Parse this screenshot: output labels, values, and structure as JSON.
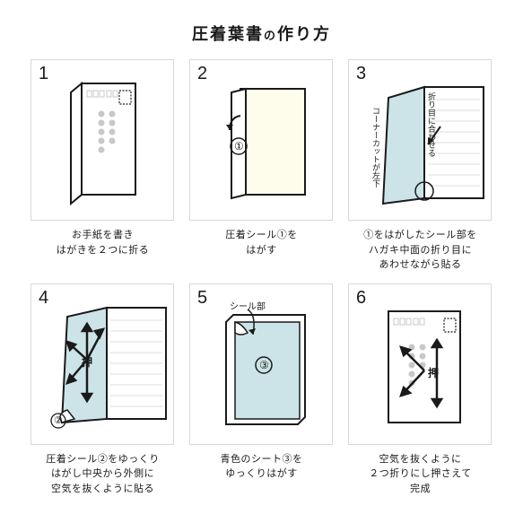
{
  "title_main": "圧着葉書",
  "title_no": "の",
  "title_sub": "作り方",
  "colors": {
    "stroke": "#1a1a1a",
    "paper": "#ffffff",
    "cream": "#fefdec",
    "blue": "#cce4e7",
    "grey": "#d0d0d0",
    "dot": "#c8c8c8",
    "line": "#dcdcdc"
  },
  "steps": [
    {
      "n": "1",
      "cap": "お手紙を書き\nはがきを２つに折る"
    },
    {
      "n": "2",
      "cap": "圧着シール①を\nはがす",
      "badge": "①"
    },
    {
      "n": "3",
      "cap": "①をはがしたシール部を\nハガキ中面の折り目に\nあわせながら貼る",
      "v1": "折り目に合わせる",
      "v2": "コーナーカットが左下"
    },
    {
      "n": "4",
      "cap": "圧着シール②をゆっくり\nはがし中央から外側に\n空気を抜くように貼る",
      "push": "押",
      "badge": "②"
    },
    {
      "n": "5",
      "cap": "青色のシート③を\nゆっくりはがす",
      "label": "シール部",
      "badge": "③"
    },
    {
      "n": "6",
      "cap": "空気を抜くように\n２つ折りにし押さえて\n完成",
      "push": "押"
    }
  ]
}
